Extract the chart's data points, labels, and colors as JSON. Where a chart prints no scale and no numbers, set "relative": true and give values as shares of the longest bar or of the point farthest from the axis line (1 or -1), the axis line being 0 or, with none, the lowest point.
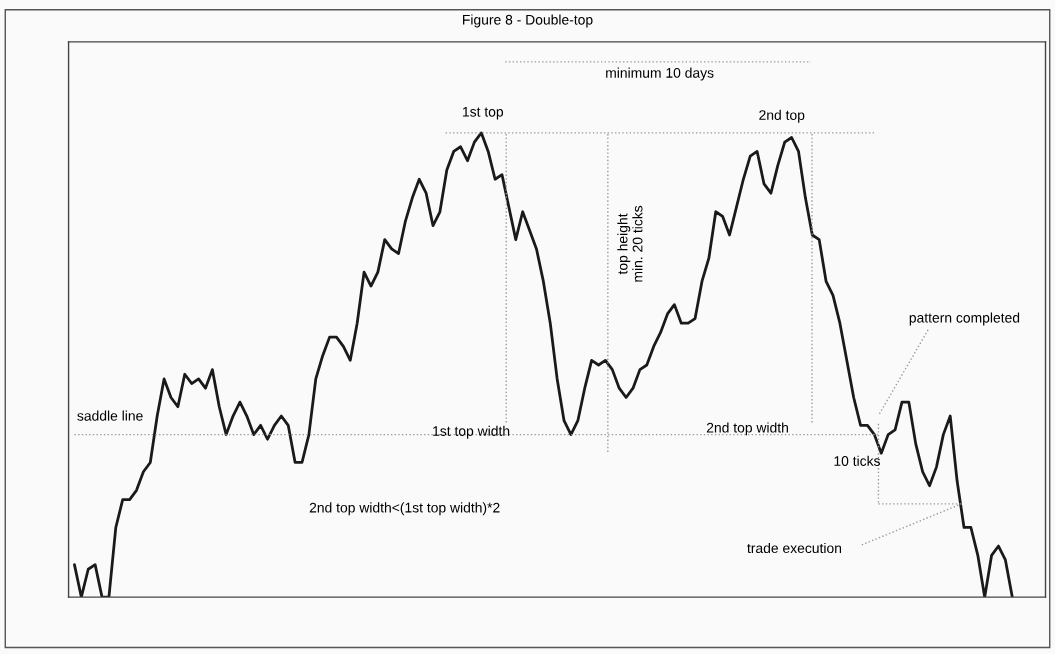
{
  "chart_data": {
    "type": "line",
    "title": "Figure 8 - Double-top",
    "relative": true,
    "color": "#1a1a1a",
    "categories": [
      null,
      null,
      null,
      null,
      null,
      null,
      null,
      null,
      null,
      null,
      null,
      null,
      null,
      null,
      null,
      null,
      null,
      null,
      null,
      null,
      null,
      null,
      null,
      null,
      null,
      null,
      null,
      null,
      null,
      null,
      null,
      null,
      null,
      null,
      null,
      null,
      null,
      null,
      null,
      null,
      null,
      null,
      null,
      null,
      null,
      null,
      null,
      null,
      null,
      null,
      null,
      null,
      null,
      null,
      null,
      null,
      null,
      null,
      null,
      null,
      null,
      null,
      null,
      null,
      null,
      null,
      null,
      null,
      null,
      null,
      null,
      null,
      null,
      null,
      null,
      null,
      null,
      null,
      null,
      null,
      null,
      null,
      null,
      null,
      null,
      null,
      null,
      null,
      null,
      null,
      null,
      null,
      null,
      null,
      null,
      null,
      null,
      null,
      null,
      null,
      null,
      null,
      null,
      null,
      null,
      null,
      null,
      null,
      null,
      null,
      null,
      null,
      null,
      null,
      null,
      null,
      null,
      null,
      null,
      null,
      null,
      null,
      null,
      null,
      null,
      null,
      null,
      null,
      null,
      null,
      null,
      null,
      null,
      null,
      null,
      null,
      null
    ],
    "values": [
      0.07,
      0,
      0.06,
      0.07,
      0,
      0,
      0.15,
      0.21,
      0.21,
      0.23,
      0.27,
      0.29,
      0.39,
      0.47,
      0.43,
      0.41,
      0.48,
      0.46,
      0.47,
      0.45,
      0.49,
      0.41,
      0.35,
      0.39,
      0.42,
      0.39,
      0.35,
      0.37,
      0.34,
      0.37,
      0.39,
      0.37,
      0.29,
      0.29,
      0.35,
      0.47,
      0.52,
      0.56,
      0.56,
      0.54,
      0.51,
      0.59,
      0.7,
      0.67,
      0.7,
      0.77,
      0.75,
      0.74,
      0.81,
      0.86,
      0.9,
      0.87,
      0.8,
      0.83,
      0.92,
      0.96,
      0.97,
      0.94,
      0.98,
      1,
      0.96,
      0.9,
      0.91,
      0.84,
      0.77,
      0.83,
      0.79,
      0.75,
      0.68,
      0.59,
      0.47,
      0.38,
      0.35,
      0.38,
      0.45,
      0.51,
      0.5,
      0.51,
      0.49,
      0.45,
      0.43,
      0.45,
      0.49,
      0.5,
      0.54,
      0.57,
      0.61,
      0.63,
      0.59,
      0.59,
      0.6,
      0.68,
      0.73,
      0.83,
      0.82,
      0.78,
      0.84,
      0.9,
      0.95,
      0.96,
      0.89,
      0.87,
      0.93,
      0.98,
      0.99,
      0.96,
      0.86,
      0.78,
      0.77,
      0.68,
      0.65,
      0.59,
      0.51,
      0.43,
      0.37,
      0.37,
      0.35,
      0.31,
      0.35,
      0.36,
      0.42,
      0.42,
      0.33,
      0.27,
      0.24,
      0.28,
      0.35,
      0.39,
      0.25,
      0.15,
      0.15,
      0.09,
      0,
      0.09,
      0.11,
      0.08,
      0
    ],
    "ref_lines": [
      {
        "axis": "y",
        "value": 0.35,
        "label": "saddle line",
        "line_style": "dotted",
        "color": "#9a9a9a"
      },
      {
        "axis": "y",
        "value": 1,
        "line_style": "dotted",
        "color": "#9a9a9a"
      }
    ],
    "annotations": [
      "minimum 10 days",
      "1st top",
      "2nd top",
      "top height\nmin. 20 ticks",
      "pattern completed",
      "1st top width",
      "2nd top width",
      "10 ticks",
      "2nd top width<(1st top width)*2",
      "trade execution"
    ],
    "legend": false,
    "marker": "none",
    "line_style": "solid",
    "tick_labels": false
  }
}
